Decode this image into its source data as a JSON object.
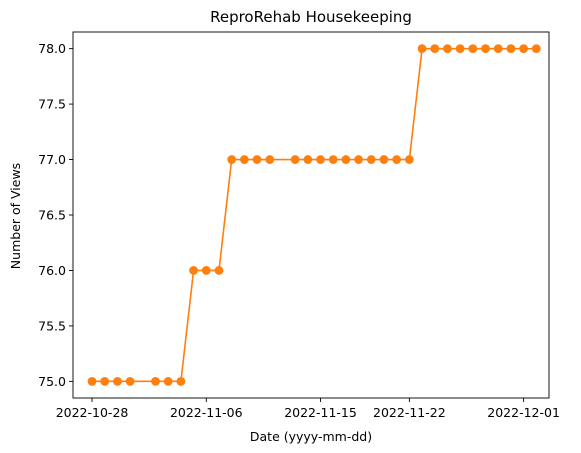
{
  "chart_data": {
    "type": "line",
    "title": "ReproRehab Housekeeping",
    "xlabel": "Date (yyyy-mm-dd)",
    "ylabel": "Number of Views",
    "ylim": [
      74.85,
      78.15
    ],
    "xlim": [
      "2022-10-26T12:00",
      "2022-12-03T00:00"
    ],
    "grid": false,
    "x_ticks": [
      "2022-10-28",
      "2022-11-06",
      "2022-11-15",
      "2022-11-22",
      "2022-12-01"
    ],
    "y_ticks": [
      75.0,
      75.5,
      76.0,
      76.5,
      77.0,
      77.5,
      78.0
    ],
    "y_tick_labels": [
      "75.0",
      "75.5",
      "76.0",
      "76.5",
      "77.0",
      "77.5",
      "78.0"
    ],
    "series": [
      {
        "color": "#ff7f0e",
        "marker": "circle",
        "x": [
          "2022-10-28",
          "2022-10-29",
          "2022-10-30",
          "2022-10-31",
          "2022-11-02",
          "2022-11-03",
          "2022-11-04",
          "2022-11-05",
          "2022-11-06",
          "2022-11-07",
          "2022-11-08",
          "2022-11-09",
          "2022-11-10",
          "2022-11-11",
          "2022-11-13",
          "2022-11-14",
          "2022-11-15",
          "2022-11-16",
          "2022-11-17",
          "2022-11-18",
          "2022-11-19",
          "2022-11-20",
          "2022-11-21",
          "2022-11-22",
          "2022-11-23",
          "2022-11-24",
          "2022-11-25",
          "2022-11-26",
          "2022-11-27",
          "2022-11-28",
          "2022-11-29",
          "2022-11-30",
          "2022-12-01",
          "2022-12-02"
        ],
        "values": [
          75,
          75,
          75,
          75,
          75,
          75,
          75,
          76,
          76,
          76,
          77,
          77,
          77,
          77,
          77,
          77,
          77,
          77,
          77,
          77,
          77,
          77,
          77,
          77,
          78,
          78,
          78,
          78,
          78,
          78,
          78,
          78,
          78,
          78
        ]
      }
    ]
  }
}
